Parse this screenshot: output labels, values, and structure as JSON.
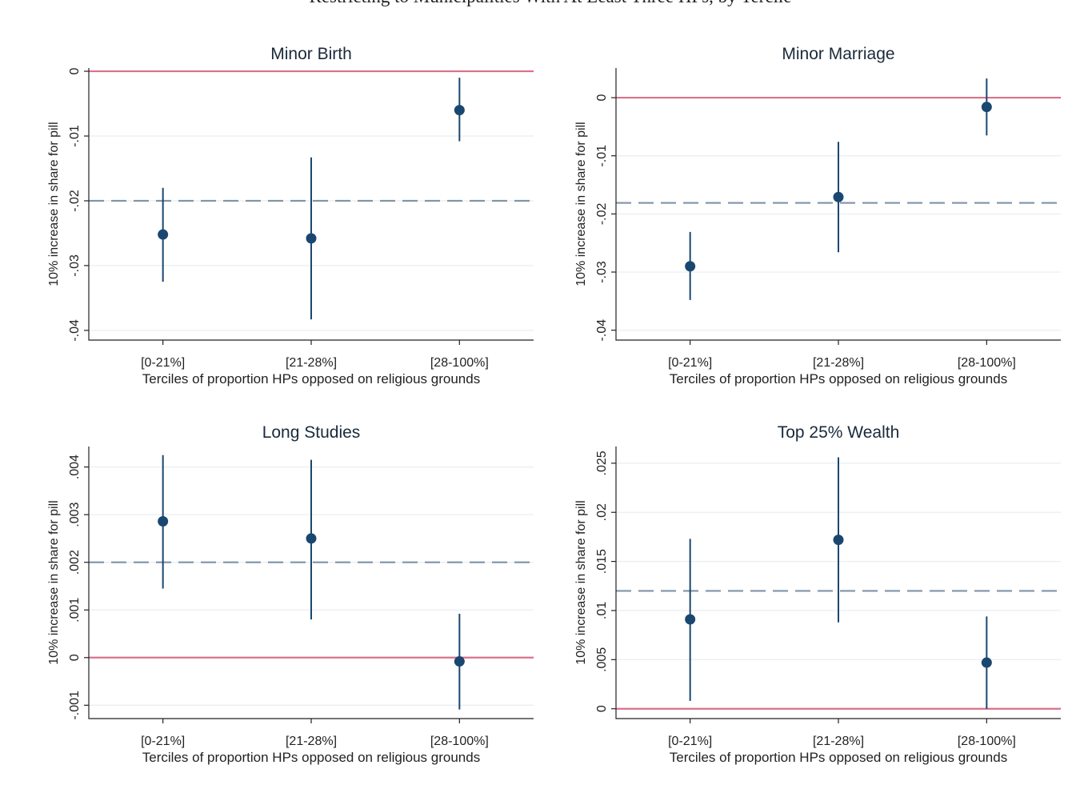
{
  "figure": {
    "suptitle": "Restricting to Municipalities With At Least Three HPs, by Tercile"
  },
  "colors": {
    "point": "#1a476f",
    "errorbar": "#1a476f",
    "zero_line": "#d9718a",
    "mean_line": "#7f93a8",
    "grid": "#e9eef3",
    "axis": "#222222"
  },
  "chart_data": [
    {
      "type": "scatter",
      "title": "Minor Birth",
      "xlabel": "Terciles of proportion HPs opposed on religious grounds",
      "ylabel": "10% increase in share for pill",
      "categories": [
        "[0-21%]",
        "[21-28%]",
        "[28-100%]"
      ],
      "estimates": [
        -0.0252,
        -0.0258,
        -0.006
      ],
      "ci_low": [
        -0.0325,
        -0.0383,
        -0.0108
      ],
      "ci_high": [
        -0.018,
        -0.0133,
        -0.001
      ],
      "pooled_estimate": -0.02,
      "reference_line": 0,
      "ylim": [
        -0.0415,
        0.0005
      ],
      "yticks": [
        0,
        -0.01,
        -0.02,
        -0.03,
        -0.04
      ],
      "ytick_labels": [
        "0",
        "-.01",
        "-.02",
        "-.03",
        "-.04"
      ],
      "grid": true
    },
    {
      "type": "scatter",
      "title": "Minor Marriage",
      "xlabel": "Terciles of proportion HPs opposed on religious grounds",
      "ylabel": "10% increase in share for pill",
      "categories": [
        "[0-21%]",
        "[21-28%]",
        "[28-100%]"
      ],
      "estimates": [
        -0.029,
        -0.0171,
        -0.0016
      ],
      "ci_low": [
        -0.0348,
        -0.0266,
        -0.0065
      ],
      "ci_high": [
        -0.0231,
        -0.0076,
        0.0033
      ],
      "pooled_estimate": -0.0181,
      "reference_line": 0,
      "ylim": [
        -0.0417,
        0.0051
      ],
      "yticks": [
        0,
        -0.01,
        -0.02,
        -0.03,
        -0.04
      ],
      "ytick_labels": [
        "0",
        "-.01",
        "-.02",
        "-.03",
        "-.04"
      ],
      "grid": true
    },
    {
      "type": "scatter",
      "title": "Long Studies",
      "xlabel": "Terciles of proportion HPs opposed on religious grounds",
      "ylabel": "10% increase in share for pill",
      "categories": [
        "[0-21%]",
        "[21-28%]",
        "[28-100%]"
      ],
      "estimates": [
        0.00286,
        0.0025,
        -8e-05
      ],
      "ci_low": [
        0.00145,
        0.0008,
        -0.00109
      ],
      "ci_high": [
        0.00425,
        0.00415,
        0.00092
      ],
      "pooled_estimate": 0.002,
      "reference_line": 0,
      "ylim": [
        -0.00128,
        0.00443
      ],
      "yticks": [
        0.004,
        0.003,
        0.002,
        0.001,
        0,
        -0.001
      ],
      "ytick_labels": [
        ".004",
        ".003",
        ".002",
        ".001",
        "0",
        "-.001"
      ],
      "grid": true
    },
    {
      "type": "scatter",
      "title": "Top 25% Wealth",
      "xlabel": "Terciles of proportion HPs opposed on religious grounds",
      "ylabel": "10% increase in share for pill",
      "categories": [
        "[0-21%]",
        "[21-28%]",
        "[28-100%]"
      ],
      "estimates": [
        0.0091,
        0.0172,
        0.0047
      ],
      "ci_low": [
        0.0008,
        0.0088,
        0.0
      ],
      "ci_high": [
        0.0173,
        0.0256,
        0.0094
      ],
      "pooled_estimate": 0.012,
      "reference_line": 0,
      "ylim": [
        -0.001,
        0.0267
      ],
      "yticks": [
        0.025,
        0.02,
        0.015,
        0.01,
        0.005,
        0
      ],
      "ytick_labels": [
        ".025",
        ".02",
        ".015",
        ".01",
        ".005",
        "0"
      ],
      "grid": true
    }
  ]
}
